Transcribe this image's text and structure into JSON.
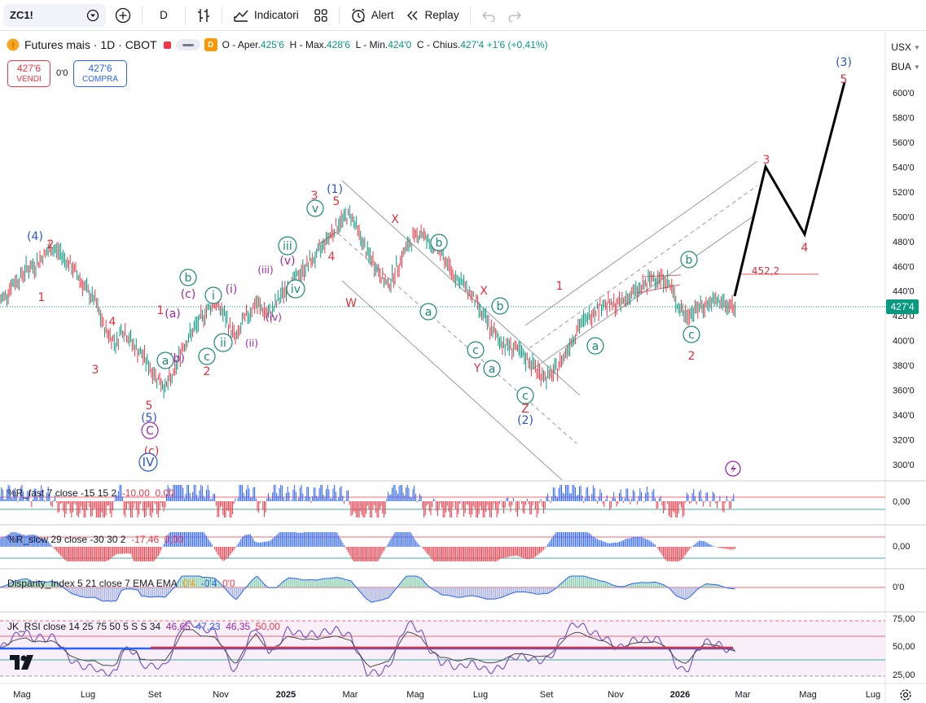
{
  "toolbar": {
    "symbol": "ZC1!",
    "interval": "D",
    "indicators_label": "Indicatori",
    "alert_label": "Alert",
    "replay_label": "Replay"
  },
  "legend": {
    "title": "Futures mais · 1D · CBOT",
    "badge": "D",
    "open_label": "O - Aper.",
    "open": "425'6",
    "high_label": "H - Max.",
    "high": "428'6",
    "low_label": "L - Min.",
    "low": "424'0",
    "close_label": "C - Chius.",
    "close": "427'4",
    "change": "+1'6 (+0,41%)"
  },
  "trade": {
    "sell_price": "427'6",
    "sell_label": "VENDI",
    "buy_price": "427'6",
    "buy_label": "COMPRA",
    "spread": "0'0"
  },
  "axis": {
    "currency": "USX",
    "unit": "BUA",
    "last_price": "427'4"
  },
  "indicators": [
    {
      "name": "%R_fast 7 close -15 15 2",
      "values": [
        "-10,00",
        "0,00"
      ],
      "axis": [
        "0,00"
      ]
    },
    {
      "name": "%R_slow 29 close -30 30 2",
      "values": [
        "-17,46",
        "0,00"
      ],
      "axis": [
        "0,00"
      ]
    },
    {
      "name": "Disparity_Index 5 21 close 7 EMA EMA",
      "values": [
        "0'4",
        "-0'4",
        "0'0"
      ],
      "axis": [
        "0'0"
      ]
    },
    {
      "name": "JK_RSI close 14 25 75 50 5 S S 34",
      "values": [
        "46,65",
        "47,23",
        "46,35",
        "50,00"
      ],
      "axis": [
        "75,00",
        "50,00",
        "25,00"
      ]
    }
  ],
  "chart_data": {
    "type": "line",
    "title": "Futures mais · 1D · CBOT",
    "y_unit": "USX/BUA",
    "ylim": [
      290,
      620
    ],
    "price_ticks": [
      "600'0",
      "580'0",
      "560'0",
      "540'0",
      "520'0",
      "500'0",
      "480'0",
      "460'0",
      "440'0",
      "420'0",
      "400'0",
      "380'0",
      "360'0",
      "340'0",
      "320'0",
      "300'0"
    ],
    "x_ticks": [
      "Mag",
      "Lug",
      "Set",
      "Nov",
      "2025",
      "Mar",
      "Mag",
      "Lug",
      "Set",
      "Nov",
      "2026",
      "Mar",
      "Mag",
      "Lug"
    ],
    "series": [
      {
        "x": [
          0,
          5,
          9,
          14,
          19,
          25,
          31,
          37,
          43,
          50,
          57,
          63,
          69,
          75,
          81,
          85,
          88,
          92,
          96,
          100,
          105,
          110,
          116,
          120,
          126,
          132,
          138,
          144,
          150,
          156,
          160,
          164,
          168,
          172,
          177,
          181,
          186,
          190,
          195,
          200,
          206,
          212,
          218,
          224,
          230,
          236,
          243,
          249,
          255,
          261,
          266,
          272,
          278,
          282,
          288,
          294,
          300,
          306,
          312,
          318,
          322,
          328,
          334,
          338,
          343,
          348,
          354,
          360,
          365,
          369,
          374,
          379,
          386,
          392,
          398,
          404,
          409,
          415,
          421,
          427,
          433,
          439,
          445,
          451,
          457,
          463,
          468,
          472,
          476,
          482,
          486,
          492,
          498,
          504,
          510,
          516,
          522,
          528,
          534
        ],
        "values": [
          432,
          438,
          446,
          450,
          458,
          460,
          468,
          474,
          472,
          462,
          452,
          440,
          432,
          412,
          402,
          398,
          410,
          405,
          398,
          392,
          386,
          376,
          368,
          362,
          372,
          394,
          404,
          414,
          424,
          432,
          426,
          418,
          408,
          402,
          416,
          422,
          430,
          426,
          420,
          428,
          440,
          446,
          454,
          462,
          468,
          480,
          490,
          498,
          502,
          486,
          472,
          462,
          450,
          444,
          458,
          472,
          482,
          488,
          478,
          474,
          468,
          456,
          448,
          444,
          436,
          426,
          414,
          404,
          398,
          396,
          394,
          388,
          382,
          374,
          370,
          376,
          386,
          400,
          412,
          418,
          426,
          430,
          428,
          430,
          436,
          440,
          444,
          448,
          452,
          450,
          446,
          430,
          420,
          424,
          428,
          430,
          432,
          428,
          427
        ]
      }
    ],
    "waves_labels": [
      "(4)",
      "2",
      "1",
      "4",
      "3",
      "5",
      "(5)",
      "C",
      "(c)",
      "IV",
      "1",
      "(a)",
      "(c)",
      "b",
      "(b)",
      "a",
      "2",
      "i",
      "(i)",
      "ii",
      "(ii)",
      "c",
      "(iii)",
      "iii",
      "(iv)",
      "iv",
      "(v)",
      "v",
      "3",
      "(1)",
      "5",
      "4",
      "W",
      "X",
      "b",
      "a",
      "X",
      "b",
      "c",
      "Y",
      "a",
      "c",
      "Z",
      "(2)",
      "1",
      "a",
      "b",
      "c",
      "2",
      "452,2",
      "3",
      "4",
      "(3)",
      "5"
    ],
    "projection_label": "452,2",
    "legend": "none",
    "grid": true
  }
}
